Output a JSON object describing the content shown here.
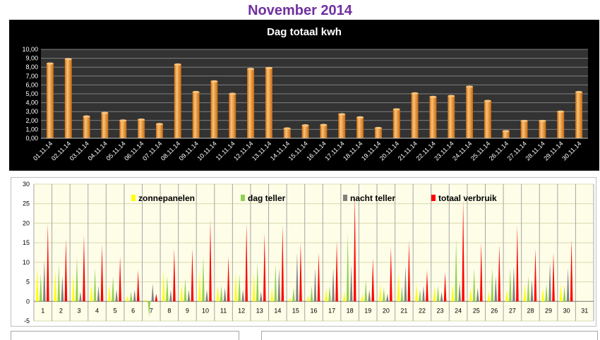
{
  "page": {
    "title": "November 2014"
  },
  "chart_data": [
    {
      "type": "bar",
      "title": "Dag totaal kwh",
      "categories": [
        "01.11.14",
        "02.11.14",
        "03.11.14",
        "04.11.14",
        "05.11.14",
        "06.11.14",
        "07.11.14",
        "08.11.14",
        "09.11.14",
        "10.11.14",
        "11.11.14",
        "12.11.14",
        "13.11.14",
        "14.11.14",
        "15.11.14",
        "16.11.14",
        "17.11.14",
        "18.11.14",
        "19.11.14",
        "20.11.14",
        "21.11.14",
        "22.11.14",
        "23.11.14",
        "24.11.14",
        "25.11.14",
        "26.11.14",
        "27.11.14",
        "28.11.14",
        "29.11.14",
        "30.11.14"
      ],
      "values": [
        8.4,
        8.9,
        2.45,
        2.85,
        2.0,
        2.1,
        1.6,
        8.3,
        5.2,
        6.4,
        5.0,
        7.8,
        7.9,
        1.1,
        1.45,
        1.5,
        2.7,
        2.35,
        1.15,
        3.25,
        5.05,
        4.65,
        4.75,
        5.8,
        4.2,
        0.8,
        1.95,
        1.95,
        3.0,
        5.2
      ],
      "ylim": [
        0,
        10
      ],
      "yticks": [
        "0,00",
        "1,00",
        "2,00",
        "3,00",
        "4,00",
        "5,00",
        "6,00",
        "7,00",
        "8,00",
        "9,00",
        "10,00"
      ],
      "grid": true,
      "colors": {
        "bar": "#f7941d",
        "bar_light": "#fbc37a",
        "bar_dark": "#c8690a",
        "background": "#000000",
        "plot": "#333333",
        "grid": "#7f7f7f"
      }
    },
    {
      "type": "bar",
      "categories": [
        "1",
        "2",
        "3",
        "4",
        "5",
        "6",
        "7",
        "8",
        "9",
        "10",
        "11",
        "12",
        "13",
        "14",
        "15",
        "16",
        "17",
        "18",
        "19",
        "20",
        "21",
        "22",
        "23",
        "24",
        "25",
        "26",
        "27",
        "28",
        "29",
        "30",
        "31"
      ],
      "ylim": [
        -5,
        30
      ],
      "yticks": [
        "-5",
        "0",
        "5",
        "10",
        "15",
        "20",
        "25",
        "30"
      ],
      "legend_position": "top",
      "grid": true,
      "series": [
        {
          "name": "zonnepanelen",
          "color": "#ffff00",
          "values": [
            8.5,
            8.0,
            7.0,
            4.5,
            4.5,
            1.5,
            0.5,
            8.0,
            4.5,
            8.0,
            4.0,
            7.5,
            7.5,
            3.5,
            1.0,
            1.5,
            3.5,
            2.5,
            2.0,
            4.5,
            7.5,
            4.5,
            4.0,
            4.5,
            3.5,
            2.5,
            3.0,
            4.5,
            3.5,
            4.5,
            0
          ]
        },
        {
          "name": "dag teller",
          "color": "#92d050",
          "values": [
            7.0,
            9.5,
            11.5,
            8.5,
            6.5,
            2.5,
            -4.0,
            6.5,
            6.0,
            11.5,
            4.0,
            7.0,
            10.0,
            9.5,
            3.5,
            4.0,
            4.0,
            17.5,
            5.5,
            3.5,
            4.0,
            3.0,
            4.0,
            16.0,
            8.5,
            8.5,
            8.5,
            6.5,
            4.5,
            4.0,
            0
          ]
        },
        {
          "name": "nacht teller",
          "color": "#808080",
          "values": [
            10.5,
            6.5,
            2.5,
            4.0,
            3.0,
            3.0,
            4.5,
            3.0,
            3.0,
            3.0,
            3.5,
            3.0,
            2.5,
            8.5,
            12.5,
            8.5,
            8.5,
            9.5,
            3.0,
            2.0,
            9.0,
            4.0,
            2.5,
            5.0,
            3.5,
            6.5,
            9.0,
            5.5,
            10.0,
            8.5,
            0
          ]
        },
        {
          "name": "totaal verbruik",
          "color": "#ff0000",
          "values": [
            20.0,
            16.0,
            17.0,
            14.5,
            11.5,
            8.0,
            2.0,
            13.5,
            13.5,
            21.0,
            11.5,
            20.0,
            17.5,
            19.5,
            15.0,
            12.5,
            15.5,
            27.5,
            11.0,
            14.0,
            15.5,
            8.0,
            7.5,
            26.0,
            15.0,
            14.5,
            19.5,
            13.5,
            12.5,
            16.0,
            0
          ]
        }
      ],
      "colors": {
        "plot": "#fdfde8",
        "grid": "#a6a6a6",
        "axis_text": "#000000"
      }
    }
  ]
}
